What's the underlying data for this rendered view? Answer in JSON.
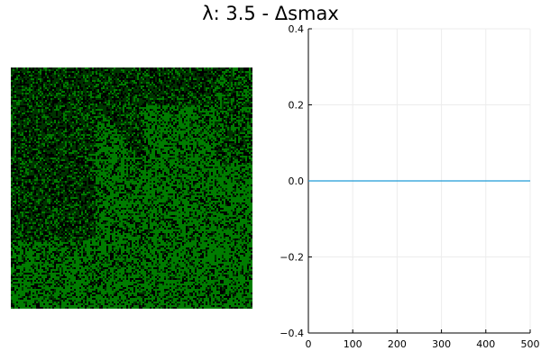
{
  "title": "λ: 3.5 - Δsmax",
  "chart_data": [
    {
      "type": "heatmap",
      "colormap": [
        "#000000",
        "#003400",
        "#007c00"
      ],
      "description_colors": {
        "dark": "#000000",
        "mid": "#003400",
        "bright": "#007c00"
      }
    },
    {
      "type": "line",
      "x": [
        0,
        500
      ],
      "xlim": [
        0,
        500
      ],
      "ylim": [
        -0.4,
        0.4
      ],
      "xticks": [
        "0",
        "100",
        "200",
        "300",
        "400",
        "500"
      ],
      "yticks": [
        "−0.4",
        "−0.2",
        "0.0",
        "0.2",
        "0.4"
      ],
      "series": [
        {
          "color": "#1f9bd6",
          "y": [
            0.0,
            0.0
          ]
        }
      ],
      "grid": true
    }
  ]
}
